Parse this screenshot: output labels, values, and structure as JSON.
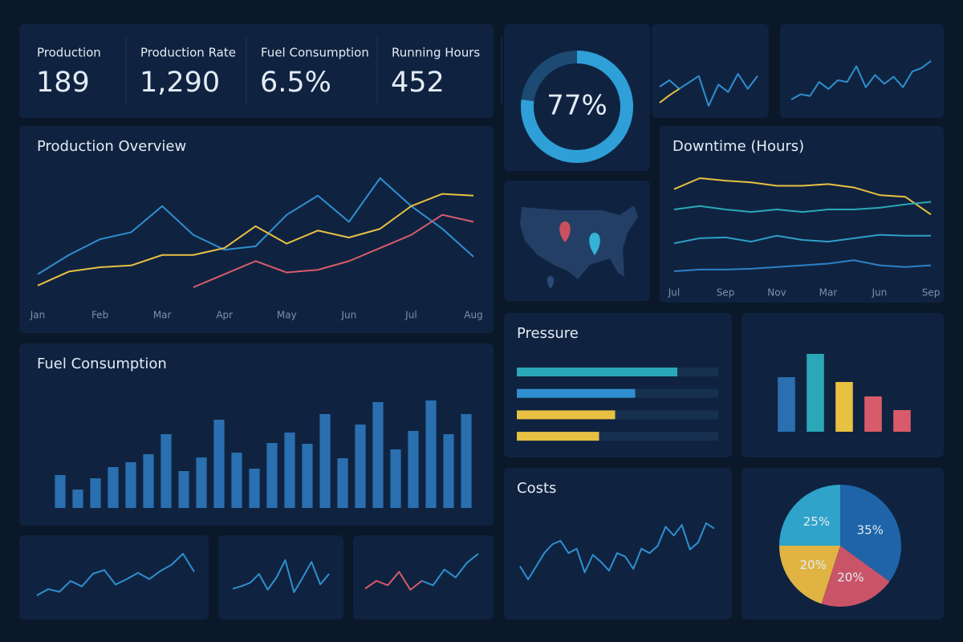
{
  "kpis": [
    {
      "label": "Production",
      "value": 189
    },
    {
      "label": "Production Rate",
      "value": 1290,
      "value_label": "1,290"
    },
    {
      "label": "Fuel Consumption",
      "value": 6.5,
      "value_label": "6.5%"
    },
    {
      "label": "Running Hours",
      "value": 452
    }
  ],
  "chart_data": [
    {
      "type": "gauge",
      "value": 77,
      "value_label": "77%",
      "color": "#2f9fd8"
    },
    {
      "type": "line",
      "series": [
        {
          "color": "#2f8fd0",
          "values": [
            20,
            26,
            18,
            24,
            30,
            2,
            22,
            15,
            32,
            18,
            30
          ]
        },
        {
          "color": "#e8c042",
          "values": [
            5,
            12,
            18,
            null,
            null,
            null,
            null,
            null,
            null,
            null,
            null
          ]
        }
      ]
    },
    {
      "type": "line",
      "series": [
        {
          "color": "#2f8fd0",
          "values": [
            8,
            14,
            12,
            28,
            20,
            30,
            28,
            46,
            22,
            36,
            26,
            34,
            22,
            40,
            44,
            52
          ]
        }
      ]
    },
    {
      "type": "line",
      "title": "Production Overview",
      "categories": [
        "Jan",
        null,
        "Feb",
        null,
        "Mar",
        null,
        "Apr",
        null,
        "May",
        null,
        "Jun",
        null,
        "Jul",
        null,
        "Aug"
      ],
      "series": [
        {
          "color": "#2f8fd0",
          "values": [
            60,
            82,
            100,
            108,
            138,
            105,
            88,
            92,
            128,
            150,
            120,
            170,
            138,
            112,
            80
          ]
        },
        {
          "color": "#e8c042",
          "values": [
            47,
            63,
            68,
            70,
            82,
            82,
            90,
            115,
            95,
            110,
            102,
            112,
            138,
            152,
            150
          ]
        },
        {
          "color": "#d95b6b",
          "values": [
            null,
            null,
            null,
            null,
            null,
            45,
            60,
            75,
            62,
            65,
            75,
            90,
            105,
            128,
            120
          ]
        }
      ]
    },
    {
      "type": "line",
      "title": "Downtime (Hours)",
      "categories": [
        "Jul",
        null,
        "Sep",
        null,
        "Nov",
        null,
        "Mar",
        null,
        "Jun",
        null,
        "Sep"
      ],
      "series": [
        {
          "color": "#e8c042",
          "values": [
            62,
            75,
            72,
            70,
            66,
            66,
            68,
            64,
            55,
            53,
            32
          ]
        },
        {
          "color": "#2aa8b8",
          "values": [
            38,
            42,
            38,
            35,
            38,
            35,
            38,
            38,
            40,
            44,
            47
          ]
        },
        {
          "color": "#2f9fc8",
          "values": [
            -2,
            4,
            5,
            0,
            7,
            2,
            0,
            4,
            8,
            7,
            7
          ]
        },
        {
          "color": "#2f7fc8",
          "values": [
            -35,
            -33,
            -33,
            -32,
            -30,
            -28,
            -26,
            -22,
            -28,
            -30,
            -28
          ]
        }
      ]
    },
    {
      "type": "bar",
      "title": "Fuel Consumption",
      "color": "#2a6fb0",
      "values": [
        41,
        23,
        37,
        51,
        57,
        67,
        92,
        46,
        63,
        110,
        69,
        49,
        81,
        94,
        80,
        117,
        62,
        104,
        132,
        73,
        96,
        134,
        92,
        117
      ]
    },
    {
      "type": "hbar",
      "title": "Pressure",
      "values": [
        80,
        59,
        49,
        41
      ],
      "colors": [
        "#2aa8b8",
        "#2f8fd0",
        "#e8c042",
        "#e8c042"
      ]
    },
    {
      "type": "bar",
      "values": [
        68,
        97,
        62,
        44,
        27
      ],
      "colors": [
        "#2a6fb0",
        "#2aa8b8",
        "#e8c042",
        "#d95b6b",
        "#d95b6b"
      ]
    },
    {
      "type": "line",
      "title": "Costs",
      "series": [
        {
          "color": "#2f8fd0",
          "values": [
            15,
            0,
            15,
            30,
            40,
            44,
            30,
            35,
            8,
            28,
            20,
            10,
            30,
            26,
            12,
            35,
            30,
            38,
            60,
            50,
            62,
            34,
            42,
            64,
            58
          ]
        }
      ]
    },
    {
      "type": "pie",
      "values": [
        35,
        20,
        20,
        25
      ],
      "value_labels": [
        "35%",
        "20%",
        "20%",
        "25%"
      ],
      "colors": [
        "#1f64a8",
        "#c95468",
        "#e0b443",
        "#2fa3c9"
      ]
    },
    {
      "type": "line",
      "series": [
        {
          "color": "#2f8fd0",
          "values": [
            2,
            9,
            6,
            18,
            12,
            26,
            30,
            14,
            20,
            27,
            20,
            29,
            36,
            48,
            28
          ]
        }
      ]
    },
    {
      "type": "line",
      "series": [
        {
          "color": "#2f8fd0",
          "values": [
            4,
            7,
            11,
            21,
            3,
            17,
            37,
            0,
            17,
            35,
            9,
            21
          ]
        }
      ]
    },
    {
      "type": "line",
      "series": [
        {
          "color": "#d95b6b",
          "values": [
            10,
            17,
            13,
            25,
            9,
            17,
            null,
            null,
            null,
            null,
            null
          ]
        },
        {
          "color": "#2f8fd0",
          "values": [
            null,
            null,
            null,
            null,
            null,
            17,
            13,
            27,
            20,
            33,
            41
          ]
        }
      ]
    }
  ]
}
